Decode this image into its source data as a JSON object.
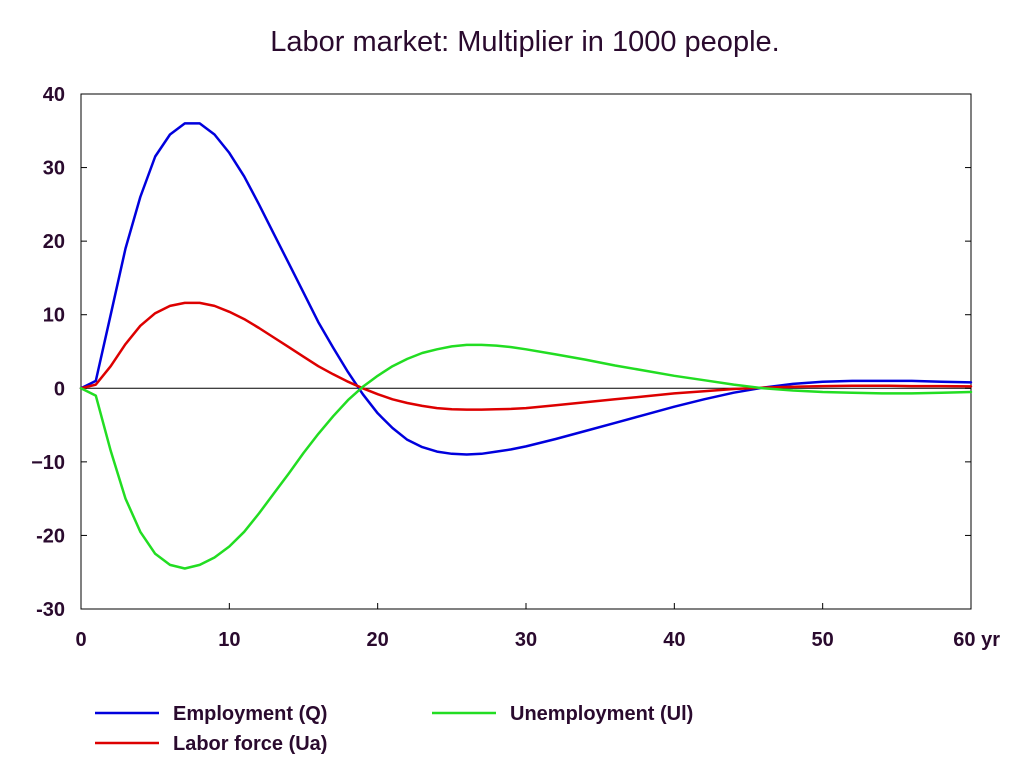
{
  "chart_data": {
    "type": "line",
    "title": "Labor market: Multiplier in 1000 people.",
    "x_unit": "yr",
    "xlim": [
      0,
      60
    ],
    "ylim": [
      -30,
      40
    ],
    "x_ticks": [
      0,
      10,
      20,
      30,
      40,
      50,
      60
    ],
    "x_tick_labels": [
      "0",
      "10",
      "20",
      "30",
      "40",
      "50",
      "60 yr"
    ],
    "y_ticks": [
      40,
      30,
      20,
      10,
      0,
      -10,
      -20,
      -30
    ],
    "y_tick_labels": [
      "40",
      "30",
      "20",
      "10",
      "0",
      "−10",
      "-20",
      "-30"
    ],
    "grid": false,
    "legend_position": "bottom",
    "series": [
      {
        "name": "Employment (Q)",
        "color": "#0000dd",
        "x": [
          0,
          1,
          2,
          3,
          4,
          5,
          6,
          7,
          8,
          9,
          10,
          11,
          12,
          13,
          14,
          15,
          16,
          17,
          18,
          19,
          20,
          21,
          22,
          23,
          24,
          25,
          26,
          27,
          28,
          29,
          30,
          32,
          34,
          36,
          38,
          40,
          42,
          44,
          46,
          48,
          50,
          52,
          54,
          56,
          58,
          60
        ],
        "y": [
          0,
          1,
          10,
          19,
          26,
          31.5,
          34.5,
          36,
          36,
          34.5,
          32,
          28.8,
          25,
          21,
          17,
          13,
          9,
          5.5,
          2.2,
          -0.8,
          -3.4,
          -5.4,
          -7,
          -8,
          -8.6,
          -8.9,
          -9,
          -8.9,
          -8.6,
          -8.3,
          -7.9,
          -6.9,
          -5.8,
          -4.7,
          -3.6,
          -2.5,
          -1.5,
          -0.6,
          0.1,
          0.6,
          0.9,
          1,
          1,
          1,
          0.9,
          0.8
        ]
      },
      {
        "name": "Labor force (Ua)",
        "color": "#dd0000",
        "x": [
          0,
          1,
          2,
          3,
          4,
          5,
          6,
          7,
          8,
          9,
          10,
          11,
          12,
          13,
          14,
          15,
          16,
          17,
          18,
          19,
          20,
          21,
          22,
          23,
          24,
          25,
          26,
          27,
          28,
          29,
          30,
          32,
          34,
          36,
          38,
          40,
          42,
          44,
          46,
          48,
          50,
          52,
          54,
          56,
          58,
          60
        ],
        "y": [
          0,
          0.5,
          3,
          6,
          8.5,
          10.2,
          11.2,
          11.6,
          11.6,
          11.2,
          10.4,
          9.4,
          8.2,
          6.9,
          5.6,
          4.3,
          3,
          1.9,
          0.9,
          0,
          -0.8,
          -1.5,
          -2,
          -2.4,
          -2.7,
          -2.85,
          -2.9,
          -2.9,
          -2.85,
          -2.8,
          -2.7,
          -2.3,
          -1.9,
          -1.5,
          -1.1,
          -0.7,
          -0.4,
          -0.1,
          0.1,
          0.2,
          0.3,
          0.35,
          0.35,
          0.3,
          0.3,
          0.25
        ]
      },
      {
        "name": "Unemployment (Ul)",
        "color": "#22dd22",
        "x": [
          0,
          1,
          2,
          3,
          4,
          5,
          6,
          7,
          8,
          9,
          10,
          11,
          12,
          13,
          14,
          15,
          16,
          17,
          18,
          19,
          20,
          21,
          22,
          23,
          24,
          25,
          26,
          27,
          28,
          29,
          30,
          32,
          34,
          36,
          38,
          40,
          42,
          44,
          46,
          48,
          50,
          52,
          54,
          56,
          58,
          60
        ],
        "y": [
          0,
          -1,
          -8.5,
          -15,
          -19.5,
          -22.5,
          -24,
          -24.5,
          -24,
          -23,
          -21.5,
          -19.5,
          -17,
          -14.3,
          -11.6,
          -8.8,
          -6.2,
          -3.8,
          -1.6,
          0.2,
          1.7,
          3,
          4,
          4.8,
          5.3,
          5.7,
          5.9,
          5.9,
          5.8,
          5.6,
          5.3,
          4.6,
          3.9,
          3.1,
          2.4,
          1.7,
          1.1,
          0.5,
          0,
          -0.3,
          -0.5,
          -0.6,
          -0.7,
          -0.7,
          -0.6,
          -0.5
        ]
      }
    ]
  }
}
